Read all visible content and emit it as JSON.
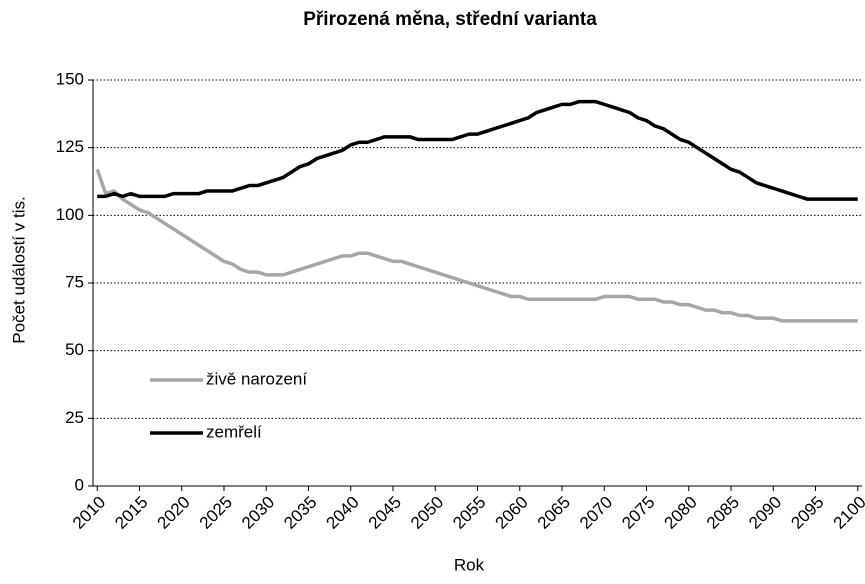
{
  "chart_data": {
    "type": "line",
    "title": "Přirozená měna,  střední  varianta",
    "x_label": "Rok",
    "y_label": "Počet událostí v tis.",
    "x": [
      2010,
      2011,
      2012,
      2013,
      2014,
      2015,
      2016,
      2017,
      2018,
      2019,
      2020,
      2021,
      2022,
      2023,
      2024,
      2025,
      2026,
      2027,
      2028,
      2029,
      2030,
      2031,
      2032,
      2033,
      2034,
      2035,
      2036,
      2037,
      2038,
      2039,
      2040,
      2041,
      2042,
      2043,
      2044,
      2045,
      2046,
      2047,
      2048,
      2049,
      2050,
      2051,
      2052,
      2053,
      2054,
      2055,
      2056,
      2057,
      2058,
      2059,
      2060,
      2061,
      2062,
      2063,
      2064,
      2065,
      2066,
      2067,
      2068,
      2069,
      2070,
      2071,
      2072,
      2073,
      2074,
      2075,
      2076,
      2077,
      2078,
      2079,
      2080,
      2081,
      2082,
      2083,
      2084,
      2085,
      2086,
      2087,
      2088,
      2089,
      2090,
      2091,
      2092,
      2093,
      2094,
      2095,
      2096,
      2097,
      2098,
      2099,
      2100
    ],
    "series": [
      {
        "name": "živě narození",
        "color": "#a6a6a6",
        "values": [
          117,
          108,
          109,
          106,
          104,
          102,
          101,
          99,
          97,
          95,
          93,
          91,
          89,
          87,
          85,
          83,
          82,
          80,
          79,
          79,
          78,
          78,
          78,
          79,
          80,
          81,
          82,
          83,
          84,
          85,
          85,
          86,
          86,
          85,
          84,
          83,
          83,
          82,
          81,
          80,
          79,
          78,
          77,
          76,
          75,
          74,
          73,
          72,
          71,
          70,
          70,
          69,
          69,
          69,
          69,
          69,
          69,
          69,
          69,
          69,
          70,
          70,
          70,
          70,
          69,
          69,
          69,
          68,
          68,
          67,
          67,
          66,
          65,
          65,
          64,
          64,
          63,
          63,
          62,
          62,
          62,
          61,
          61,
          61,
          61,
          61,
          61,
          61,
          61,
          61,
          61
        ]
      },
      {
        "name": "zemřelí",
        "color": "#000000",
        "values": [
          107,
          107,
          108,
          107,
          108,
          107,
          107,
          107,
          107,
          108,
          108,
          108,
          108,
          109,
          109,
          109,
          109,
          110,
          111,
          111,
          112,
          113,
          114,
          116,
          118,
          119,
          121,
          122,
          123,
          124,
          126,
          127,
          127,
          128,
          129,
          129,
          129,
          129,
          128,
          128,
          128,
          128,
          128,
          129,
          130,
          130,
          131,
          132,
          133,
          134,
          135,
          136,
          138,
          139,
          140,
          141,
          141,
          142,
          142,
          142,
          141,
          140,
          139,
          138,
          136,
          135,
          133,
          132,
          130,
          128,
          127,
          125,
          123,
          121,
          119,
          117,
          116,
          114,
          112,
          111,
          110,
          109,
          108,
          107,
          106,
          106,
          106,
          106,
          106,
          106,
          106
        ]
      }
    ],
    "xlim": [
      2009.5,
      2100.5
    ],
    "xticks": [
      2010,
      2015,
      2020,
      2025,
      2030,
      2035,
      2040,
      2045,
      2050,
      2055,
      2060,
      2065,
      2070,
      2075,
      2080,
      2085,
      2090,
      2095,
      2100
    ],
    "ylim": [
      0,
      150
    ],
    "yticks": [
      0,
      25,
      50,
      75,
      100,
      125,
      150
    ],
    "grid": true,
    "legend": "left"
  }
}
